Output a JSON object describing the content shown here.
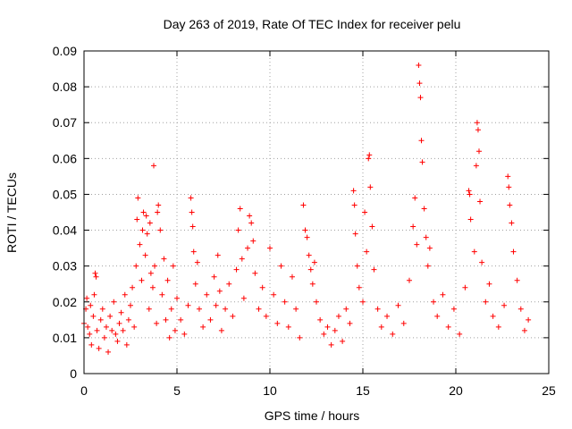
{
  "chart_data": {
    "type": "scatter",
    "title": "Day 263 of 2019, Rate Of TEC Index for receiver pelu",
    "xlabel": "GPS time / hours",
    "ylabel": "ROTI / TECUs",
    "xlim": [
      0,
      25
    ],
    "ylim": [
      0,
      0.09
    ],
    "xticks": [
      0,
      5,
      10,
      15,
      20,
      25
    ],
    "xtick_labels": [
      "0",
      "5",
      "10",
      "15",
      "20",
      "25"
    ],
    "yticks": [
      0,
      0.01,
      0.02,
      0.03,
      0.04,
      0.05,
      0.06,
      0.07,
      0.08,
      0.09
    ],
    "ytick_labels": [
      "0",
      "0.01",
      "0.02",
      "0.03",
      "0.04",
      "0.05",
      "0.06",
      "0.07",
      "0.08",
      "0.09"
    ],
    "grid": true,
    "marker": "+",
    "color": "#ff0000",
    "series": [
      {
        "name": "ROTI",
        "points": [
          [
            0.0,
            0.014
          ],
          [
            0.1,
            0.018
          ],
          [
            0.15,
            0.021
          ],
          [
            0.2,
            0.013
          ],
          [
            0.3,
            0.011
          ],
          [
            0.35,
            0.019
          ],
          [
            0.4,
            0.008
          ],
          [
            0.5,
            0.016
          ],
          [
            0.55,
            0.022
          ],
          [
            0.6,
            0.028
          ],
          [
            0.65,
            0.027
          ],
          [
            0.7,
            0.012
          ],
          [
            0.8,
            0.007
          ],
          [
            0.9,
            0.015
          ],
          [
            1.0,
            0.018
          ],
          [
            1.1,
            0.01
          ],
          [
            1.2,
            0.013
          ],
          [
            1.3,
            0.006
          ],
          [
            1.4,
            0.016
          ],
          [
            1.5,
            0.012
          ],
          [
            1.6,
            0.02
          ],
          [
            1.7,
            0.011
          ],
          [
            1.8,
            0.009
          ],
          [
            1.9,
            0.014
          ],
          [
            2.0,
            0.017
          ],
          [
            2.1,
            0.012
          ],
          [
            2.2,
            0.022
          ],
          [
            2.3,
            0.008
          ],
          [
            2.4,
            0.015
          ],
          [
            2.5,
            0.019
          ],
          [
            2.6,
            0.024
          ],
          [
            2.7,
            0.013
          ],
          [
            2.8,
            0.03
          ],
          [
            2.85,
            0.043
          ],
          [
            2.9,
            0.049
          ],
          [
            3.0,
            0.036
          ],
          [
            3.1,
            0.026
          ],
          [
            3.15,
            0.04
          ],
          [
            3.2,
            0.045
          ],
          [
            3.3,
            0.033
          ],
          [
            3.35,
            0.044
          ],
          [
            3.4,
            0.039
          ],
          [
            3.5,
            0.018
          ],
          [
            3.55,
            0.042
          ],
          [
            3.6,
            0.028
          ],
          [
            3.7,
            0.024
          ],
          [
            3.75,
            0.058
          ],
          [
            3.8,
            0.03
          ],
          [
            3.9,
            0.014
          ],
          [
            3.95,
            0.045
          ],
          [
            4.0,
            0.047
          ],
          [
            4.1,
            0.04
          ],
          [
            4.2,
            0.022
          ],
          [
            4.3,
            0.032
          ],
          [
            4.4,
            0.015
          ],
          [
            4.5,
            0.026
          ],
          [
            4.6,
            0.01
          ],
          [
            4.7,
            0.018
          ],
          [
            4.8,
            0.03
          ],
          [
            4.9,
            0.012
          ],
          [
            5.0,
            0.021
          ],
          [
            5.2,
            0.015
          ],
          [
            5.4,
            0.011
          ],
          [
            5.6,
            0.019
          ],
          [
            5.75,
            0.049
          ],
          [
            5.8,
            0.045
          ],
          [
            5.85,
            0.041
          ],
          [
            5.9,
            0.034
          ],
          [
            6.0,
            0.025
          ],
          [
            6.1,
            0.031
          ],
          [
            6.2,
            0.018
          ],
          [
            6.4,
            0.013
          ],
          [
            6.6,
            0.022
          ],
          [
            6.8,
            0.015
          ],
          [
            7.0,
            0.027
          ],
          [
            7.1,
            0.019
          ],
          [
            7.2,
            0.033
          ],
          [
            7.3,
            0.023
          ],
          [
            7.4,
            0.012
          ],
          [
            7.6,
            0.018
          ],
          [
            7.8,
            0.025
          ],
          [
            8.0,
            0.016
          ],
          [
            8.2,
            0.029
          ],
          [
            8.3,
            0.04
          ],
          [
            8.4,
            0.046
          ],
          [
            8.5,
            0.032
          ],
          [
            8.6,
            0.021
          ],
          [
            8.8,
            0.035
          ],
          [
            8.9,
            0.044
          ],
          [
            9.0,
            0.042
          ],
          [
            9.1,
            0.037
          ],
          [
            9.2,
            0.028
          ],
          [
            9.4,
            0.018
          ],
          [
            9.6,
            0.024
          ],
          [
            9.8,
            0.016
          ],
          [
            10.0,
            0.035
          ],
          [
            10.2,
            0.022
          ],
          [
            10.4,
            0.014
          ],
          [
            10.6,
            0.03
          ],
          [
            10.8,
            0.02
          ],
          [
            11.0,
            0.013
          ],
          [
            11.2,
            0.027
          ],
          [
            11.4,
            0.018
          ],
          [
            11.6,
            0.01
          ],
          [
            11.8,
            0.047
          ],
          [
            11.9,
            0.04
          ],
          [
            12.0,
            0.038
          ],
          [
            12.1,
            0.033
          ],
          [
            12.2,
            0.029
          ],
          [
            12.3,
            0.025
          ],
          [
            12.4,
            0.031
          ],
          [
            12.5,
            0.02
          ],
          [
            12.7,
            0.015
          ],
          [
            12.9,
            0.011
          ],
          [
            13.1,
            0.013
          ],
          [
            13.3,
            0.008
          ],
          [
            13.5,
            0.012
          ],
          [
            13.7,
            0.016
          ],
          [
            13.9,
            0.009
          ],
          [
            14.1,
            0.018
          ],
          [
            14.3,
            0.014
          ],
          [
            14.5,
            0.051
          ],
          [
            14.55,
            0.047
          ],
          [
            14.6,
            0.039
          ],
          [
            14.7,
            0.03
          ],
          [
            14.8,
            0.024
          ],
          [
            15.0,
            0.02
          ],
          [
            15.1,
            0.045
          ],
          [
            15.2,
            0.034
          ],
          [
            15.3,
            0.06
          ],
          [
            15.35,
            0.061
          ],
          [
            15.4,
            0.052
          ],
          [
            15.5,
            0.041
          ],
          [
            15.6,
            0.029
          ],
          [
            15.8,
            0.018
          ],
          [
            16.0,
            0.013
          ],
          [
            16.3,
            0.016
          ],
          [
            16.6,
            0.011
          ],
          [
            16.9,
            0.019
          ],
          [
            17.2,
            0.014
          ],
          [
            17.5,
            0.026
          ],
          [
            17.7,
            0.041
          ],
          [
            17.8,
            0.049
          ],
          [
            17.9,
            0.036
          ],
          [
            18.0,
            0.086
          ],
          [
            18.05,
            0.081
          ],
          [
            18.1,
            0.077
          ],
          [
            18.15,
            0.065
          ],
          [
            18.2,
            0.059
          ],
          [
            18.3,
            0.046
          ],
          [
            18.4,
            0.038
          ],
          [
            18.5,
            0.03
          ],
          [
            18.6,
            0.035
          ],
          [
            18.8,
            0.02
          ],
          [
            19.0,
            0.016
          ],
          [
            19.3,
            0.022
          ],
          [
            19.6,
            0.013
          ],
          [
            19.9,
            0.018
          ],
          [
            20.2,
            0.011
          ],
          [
            20.5,
            0.024
          ],
          [
            20.7,
            0.051
          ],
          [
            20.75,
            0.05
          ],
          [
            20.8,
            0.043
          ],
          [
            21.0,
            0.034
          ],
          [
            21.1,
            0.058
          ],
          [
            21.15,
            0.07
          ],
          [
            21.2,
            0.068
          ],
          [
            21.25,
            0.062
          ],
          [
            21.3,
            0.048
          ],
          [
            21.4,
            0.031
          ],
          [
            21.6,
            0.02
          ],
          [
            21.8,
            0.025
          ],
          [
            22.0,
            0.016
          ],
          [
            22.3,
            0.013
          ],
          [
            22.6,
            0.019
          ],
          [
            22.8,
            0.055
          ],
          [
            22.85,
            0.052
          ],
          [
            22.9,
            0.047
          ],
          [
            23.0,
            0.042
          ],
          [
            23.1,
            0.034
          ],
          [
            23.3,
            0.026
          ],
          [
            23.5,
            0.018
          ],
          [
            23.7,
            0.012
          ],
          [
            23.9,
            0.015
          ]
        ]
      }
    ]
  }
}
